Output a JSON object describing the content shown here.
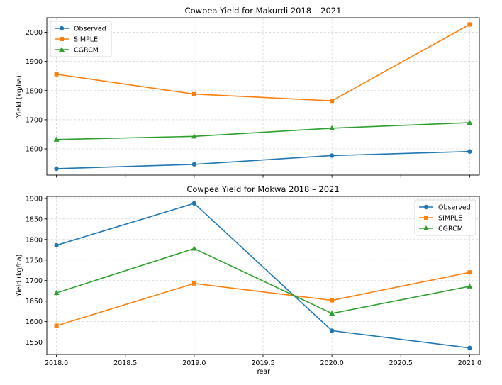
{
  "chart_data": [
    {
      "type": "line",
      "title": "Cowpea Yield for Makurdi 2018 – 2021",
      "xlabel": "",
      "ylabel": "Yield (kg/ha)",
      "x": [
        2018,
        2019,
        2020,
        2021
      ],
      "xlim": [
        2017.93,
        2021.07
      ],
      "ylim": [
        1510,
        2050
      ],
      "xticks": [
        2018.0,
        2018.5,
        2019.0,
        2019.5,
        2020.0,
        2020.5,
        2021.0
      ],
      "xtick_labels": [],
      "yticks": [
        1600,
        1700,
        1800,
        1900,
        2000
      ],
      "ytick_labels": [
        "1600",
        "1700",
        "1800",
        "1900",
        "2000"
      ],
      "grid": true,
      "legend_position": "top-left",
      "series": [
        {
          "name": "Observed",
          "values": [
            1532,
            1547,
            1577,
            1591
          ],
          "color": "#1f77b4",
          "marker": "circle"
        },
        {
          "name": "SIMPLE",
          "values": [
            1856,
            1788,
            1765,
            2027
          ],
          "color": "#ff7f0e",
          "marker": "square"
        },
        {
          "name": "CGRCM",
          "values": [
            1632,
            1643,
            1671,
            1690
          ],
          "color": "#2ca02c",
          "marker": "triangle"
        }
      ]
    },
    {
      "type": "line",
      "title": "Cowpea Yield for Mokwa 2018 – 2021",
      "xlabel": "Year",
      "ylabel": "Yield (kg/ha)",
      "x": [
        2018,
        2019,
        2020,
        2021
      ],
      "xlim": [
        2017.93,
        2021.07
      ],
      "ylim": [
        1520,
        1905
      ],
      "xticks": [
        2018.0,
        2018.5,
        2019.0,
        2019.5,
        2020.0,
        2020.5,
        2021.0
      ],
      "xtick_labels": [
        "2018.0",
        "2018.5",
        "2019.0",
        "2019.5",
        "2020.0",
        "2020.5",
        "2021.0"
      ],
      "yticks": [
        1550,
        1600,
        1650,
        1700,
        1750,
        1800,
        1850,
        1900
      ],
      "ytick_labels": [
        "1550",
        "1600",
        "1650",
        "1700",
        "1750",
        "1800",
        "1850",
        "1900"
      ],
      "grid": true,
      "legend_position": "top-right",
      "series": [
        {
          "name": "Observed",
          "values": [
            1786,
            1888,
            1578,
            1536
          ],
          "color": "#1f77b4",
          "marker": "circle"
        },
        {
          "name": "SIMPLE",
          "values": [
            1590,
            1693,
            1652,
            1720
          ],
          "color": "#ff7f0e",
          "marker": "square"
        },
        {
          "name": "CGRCM",
          "values": [
            1670,
            1778,
            1620,
            1686
          ],
          "color": "#2ca02c",
          "marker": "triangle"
        }
      ]
    }
  ]
}
